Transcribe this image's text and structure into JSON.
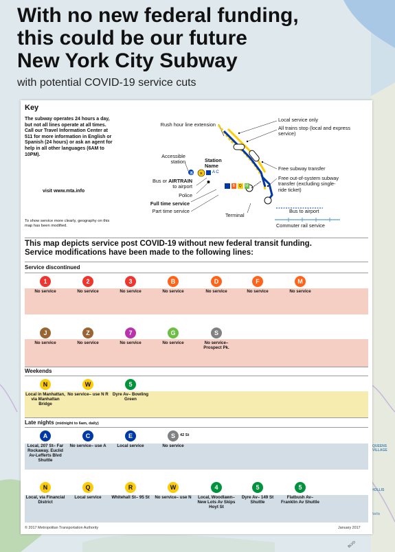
{
  "headline": {
    "line1": "With no new federal funding,",
    "line2": "this could be our future",
    "line3": "New York City Subway",
    "subtitle": "with potential COVID-19 service cuts"
  },
  "key": {
    "title": "Key",
    "info": "The subway operates 24 hours a day, but not all lines operate at all times. Call our Travel Information Center at 511 for more information in English or Spanish (24 hours) or ask an agent for help in all other languages (6AM to 10PM).",
    "website": "visit www.mta.info",
    "note": "To show service more clearly, geography on this map has been modified.",
    "labels": {
      "rush_hour": "Rush hour line extension",
      "accessible": "Accessible station",
      "station_name": "Station Name",
      "station_lines": "A C",
      "bus_airtrain_a": "Bus or ",
      "bus_airtrain_b": "AIRTRAIN",
      "bus_airtrain_c": "to airport",
      "police": "Police",
      "full_time": "Full time service",
      "part_time": "Part time service",
      "terminal": "Terminal",
      "terminal_lines": [
        "B",
        "M",
        "Q"
      ],
      "local_only": "Local service only",
      "all_stop": "All trains stop (local and express service)",
      "free_transfer": "Free subway transfer",
      "out_of_system": "Free out-of-system subway transfer (excluding single-ride ticket)",
      "bus_airport": "Bus to airport",
      "commuter": "Commuter rail service"
    }
  },
  "statement": {
    "line1": "This map depicts service post COVID-19 without new federal transit funding.",
    "line2": "Service modifications have been made to the following lines:"
  },
  "sections": {
    "discontinued": "Service discontinued",
    "weekends": "Weekends",
    "late_nights": "Late nights",
    "late_nights_note": "(midnight to 6am, daily)"
  },
  "colors": {
    "red": "#ee352e",
    "orange": "#ff6319",
    "brown": "#996633",
    "purple": "#b933ad",
    "lime": "#6cbe45",
    "gray": "#808183",
    "yellow": "#fccc0a",
    "blue": "#0039a6",
    "green": "#00933c",
    "pink_band": "#f6cfc4",
    "yellow_band": "#f7ecb0",
    "blue_band": "#d2dde6"
  },
  "discontinued_row1": [
    {
      "line": "1",
      "color": "#ee352e",
      "text_color": "#ffffff",
      "desc": "No service"
    },
    {
      "line": "2",
      "color": "#ee352e",
      "text_color": "#ffffff",
      "desc": "No service"
    },
    {
      "line": "3",
      "color": "#ee352e",
      "text_color": "#ffffff",
      "desc": "No service"
    },
    {
      "line": "B",
      "color": "#ff6319",
      "text_color": "#ffffff",
      "desc": "No service"
    },
    {
      "line": "D",
      "color": "#ff6319",
      "text_color": "#ffffff",
      "desc": "No service"
    },
    {
      "line": "F",
      "color": "#ff6319",
      "text_color": "#ffffff",
      "desc": "No service"
    },
    {
      "line": "M",
      "color": "#ff6319",
      "text_color": "#ffffff",
      "desc": "No service"
    }
  ],
  "discontinued_row2": [
    {
      "line": "J",
      "color": "#996633",
      "text_color": "#ffffff",
      "desc": "No service"
    },
    {
      "line": "Z",
      "color": "#996633",
      "text_color": "#ffffff",
      "desc": "No service"
    },
    {
      "line": "7",
      "color": "#b933ad",
      "text_color": "#ffffff",
      "desc": "No service"
    },
    {
      "line": "G",
      "color": "#6cbe45",
      "text_color": "#ffffff",
      "desc": "No service"
    },
    {
      "line": "S",
      "color": "#808183",
      "text_color": "#ffffff",
      "desc": "No service– Prospect Pk."
    }
  ],
  "weekends": [
    {
      "line": "N",
      "color": "#fccc0a",
      "text_color": "#111111",
      "desc": "Local in Manhattan, via Manhattan Bridge"
    },
    {
      "line": "W",
      "color": "#fccc0a",
      "text_color": "#111111",
      "desc": "No service– use N R"
    },
    {
      "line": "5",
      "color": "#00933c",
      "text_color": "#ffffff",
      "desc": "Dyre Av– Bowling Green"
    }
  ],
  "late_row1": [
    {
      "line": "A",
      "color": "#0039a6",
      "text_color": "#ffffff",
      "desc": "Local, 207 St– Far Rockaway. Euclid Av-Lefferts Blvd Shuttle"
    },
    {
      "line": "C",
      "color": "#0039a6",
      "text_color": "#ffffff",
      "desc": "No service– use A"
    },
    {
      "line": "E",
      "color": "#0039a6",
      "text_color": "#ffffff",
      "desc": "Local service"
    },
    {
      "line": "S",
      "color": "#808183",
      "text_color": "#ffffff",
      "desc": "No service",
      "extra": "42 St"
    }
  ],
  "late_row2": [
    {
      "line": "N",
      "color": "#fccc0a",
      "text_color": "#111111",
      "desc": "Local, via Financial District"
    },
    {
      "line": "Q",
      "color": "#fccc0a",
      "text_color": "#111111",
      "desc": "Local service"
    },
    {
      "line": "R",
      "color": "#fccc0a",
      "text_color": "#111111",
      "desc": "Whitehall St– 95 St"
    },
    {
      "line": "W",
      "color": "#fccc0a",
      "text_color": "#111111",
      "desc": "No service– use N"
    },
    {
      "line": "4",
      "color": "#00933c",
      "text_color": "#ffffff",
      "desc": "Local, Woodlawn– New Lots Av Skips Hoyt St"
    },
    {
      "line": "5",
      "color": "#00933c",
      "text_color": "#ffffff",
      "desc": "Dyre Av– 149 St Shuttle"
    },
    {
      "line": "5",
      "color": "#00933c",
      "text_color": "#ffffff",
      "desc": "Flatbush Av– Franklin Av Shuttle"
    }
  ],
  "footer": {
    "copyright": "© 2017 Metropolitan Transportation Authority",
    "date": "January 2017"
  },
  "map_labels": {
    "queens_village": "QUEENS VILLAGE",
    "hollis": "HOLLIS",
    "nellis": "Nellis",
    "blvd": "BLVD"
  }
}
